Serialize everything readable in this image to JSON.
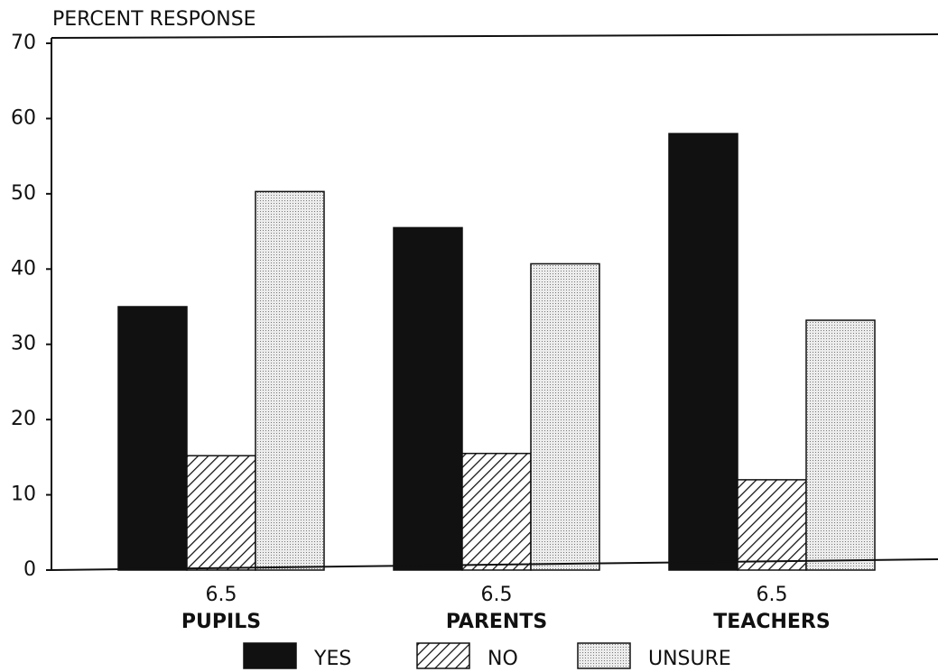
{
  "chart_data": {
    "type": "bar",
    "y_axis_label": "PERCENT RESPONSE",
    "categories": [
      "PUPILS",
      "PARENTS",
      "TEACHERS"
    ],
    "category_codes": [
      "6.5",
      "6.5",
      "6.5"
    ],
    "series": [
      {
        "name": "YES",
        "color": "#111111",
        "pattern": "solid",
        "values": [
          35,
          45.5,
          58
        ]
      },
      {
        "name": "NO",
        "color": "#111111",
        "pattern": "hatch",
        "values": [
          15.2,
          15.5,
          12
        ]
      },
      {
        "name": "UNSURE",
        "color": "#cfcfcf",
        "pattern": "dots",
        "values": [
          50.3,
          40.7,
          33.2
        ]
      }
    ],
    "ylim": [
      0,
      70
    ],
    "yticks": [
      0,
      10,
      20,
      30,
      40,
      50,
      60,
      70
    ],
    "grid": false
  }
}
